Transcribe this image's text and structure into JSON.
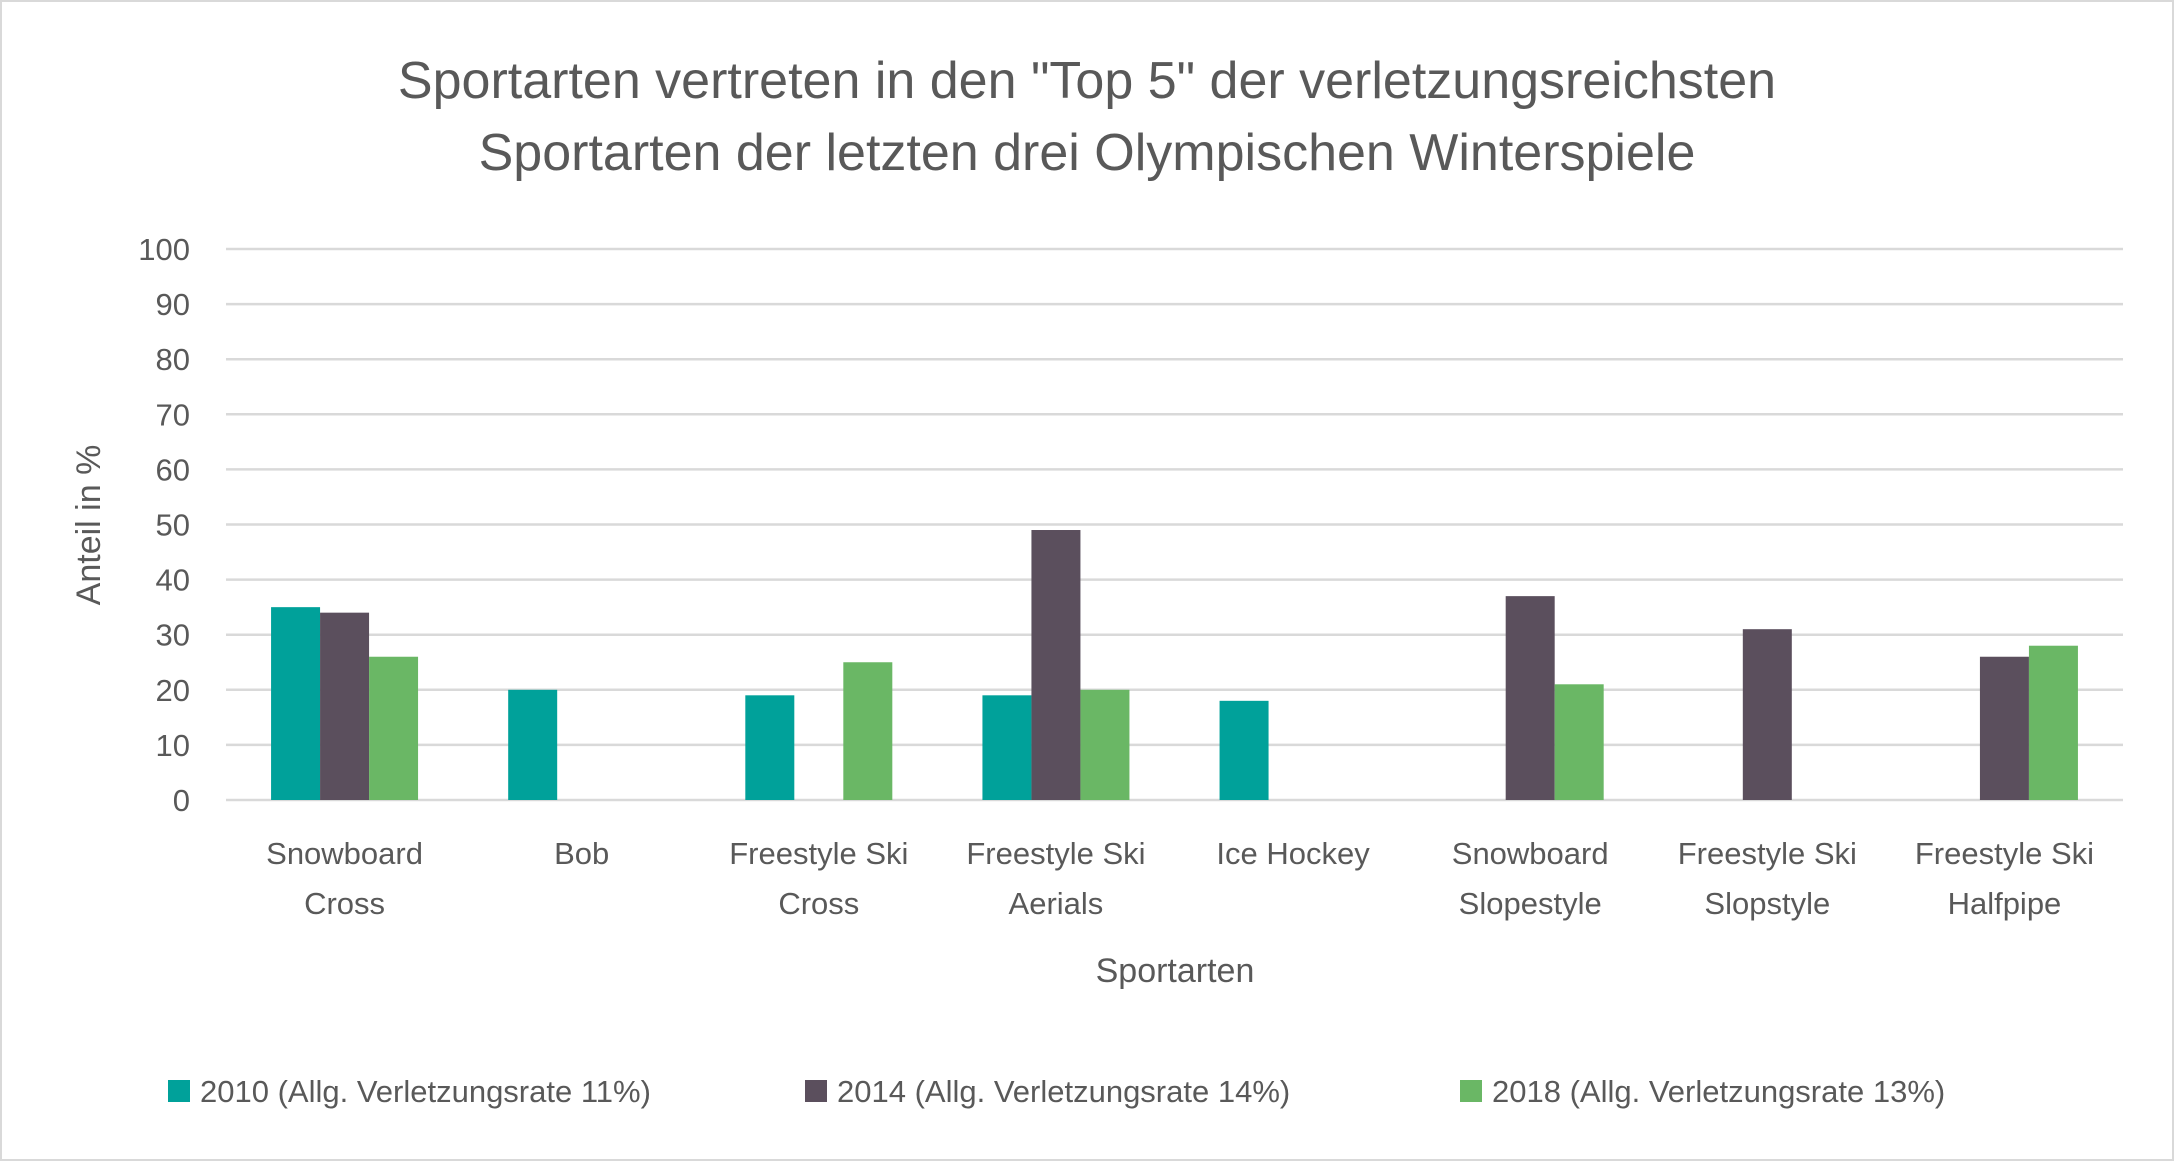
{
  "chart_data": {
    "type": "bar",
    "title_lines": [
      "Sportarten vertreten in den \"Top 5\" der verletzungsreichsten",
      "Sportarten der letzten drei Olympischen Winterspiele"
    ],
    "xlabel": "Sportarten",
    "ylabel": "Anteil in %",
    "ylim": [
      0,
      100
    ],
    "yticks": [
      0,
      10,
      20,
      30,
      40,
      50,
      60,
      70,
      80,
      90,
      100
    ],
    "grid": true,
    "legend_position": "bottom",
    "categories": [
      [
        "Snowboard",
        "Cross"
      ],
      [
        "Bob"
      ],
      [
        "Freestyle Ski",
        "Cross"
      ],
      [
        "Freestyle Ski",
        "Aerials"
      ],
      [
        "Ice Hockey"
      ],
      [
        "Snowboard",
        "Slopestyle"
      ],
      [
        "Freestyle Ski",
        "Slopstyle"
      ],
      [
        "Freestyle Ski",
        "Halfpipe"
      ]
    ],
    "series": [
      {
        "name": "2010 (Allg. Verletzungsrate 11%)",
        "color": "#00A19A",
        "values": [
          35,
          20,
          19,
          19,
          18,
          null,
          null,
          null
        ]
      },
      {
        "name": "2014 (Allg. Verletzungsrate 14%)",
        "color": "#5B4F5D",
        "values": [
          34,
          null,
          null,
          49,
          null,
          37,
          31,
          26
        ]
      },
      {
        "name": "2018 (Allg. Verletzungsrate 13%)",
        "color": "#6AB765",
        "values": [
          26,
          null,
          25,
          20,
          null,
          21,
          null,
          28
        ]
      }
    ]
  }
}
